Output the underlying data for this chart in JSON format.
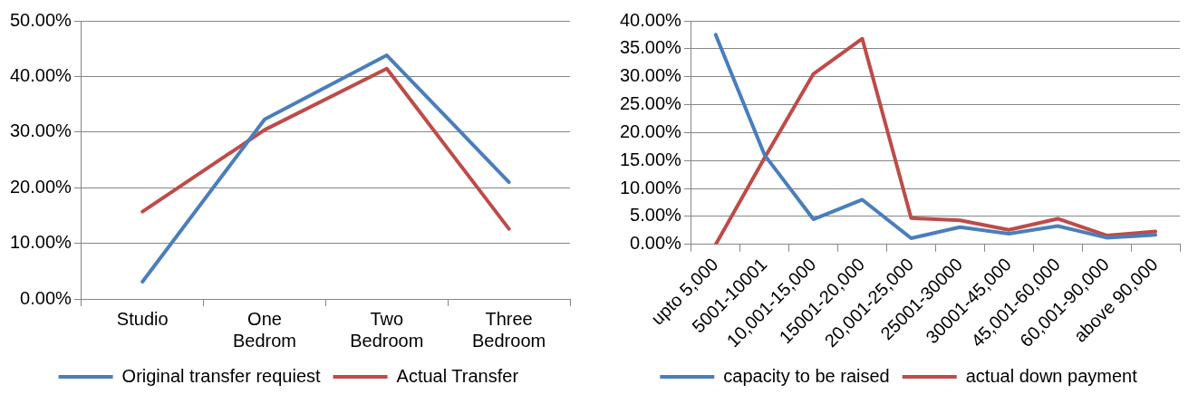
{
  "chart_data": [
    {
      "type": "line",
      "categories": [
        "Studio",
        "One Bedrom",
        "Two Bedroom",
        "Three Bedroom"
      ],
      "series": [
        {
          "name": "Original transfer requiest",
          "color": "#4a7ebb",
          "values": [
            3.1,
            32.3,
            43.8,
            21.0
          ]
        },
        {
          "name": "Actual Transfer",
          "color": "#be4b48",
          "values": [
            15.7,
            30.4,
            41.4,
            12.6
          ]
        }
      ],
      "ylim": [
        0,
        50
      ],
      "yticks": [
        {
          "value": 0,
          "label": "0.00%"
        },
        {
          "value": 10,
          "label": "10.00%"
        },
        {
          "value": 20,
          "label": "20.00%"
        },
        {
          "value": 30,
          "label": "30.00%"
        },
        {
          "value": 40,
          "label": "40.00%"
        },
        {
          "value": 50,
          "label": "50.00%"
        }
      ],
      "grid": "y",
      "legend": "bottom",
      "marker": "none",
      "line_style": "solid"
    },
    {
      "type": "line",
      "categories": [
        "upto 5,000",
        "5001-10001",
        "10,001-15,000",
        "15001-20,000",
        "20,001-25,000",
        "25001-30000",
        "30001-45,000",
        "45,001-60,000",
        "60,001-90,000",
        "above 90,000"
      ],
      "series": [
        {
          "name": "capacity to be raised",
          "color": "#4a7ebb",
          "values": [
            37.5,
            16,
            4.5,
            8.0,
            1.1,
            3.1,
            1.9,
            3.3,
            1.2,
            1.7
          ]
        },
        {
          "name": "actual down payment",
          "color": "#be4b48",
          "values": [
            0,
            15.5,
            30.5,
            36.8,
            4.7,
            4.3,
            2.6,
            4.6,
            1.6,
            2.3
          ]
        }
      ],
      "ylim": [
        0,
        40
      ],
      "yticks": [
        {
          "value": 0,
          "label": "0.00%"
        },
        {
          "value": 5,
          "label": "5.00%"
        },
        {
          "value": 10,
          "label": "10.00%"
        },
        {
          "value": 15,
          "label": "15.00%"
        },
        {
          "value": 20,
          "label": "20.00%"
        },
        {
          "value": 25,
          "label": "25.00%"
        },
        {
          "value": 30,
          "label": "30.00%"
        },
        {
          "value": 35,
          "label": "35.00%"
        },
        {
          "value": 40,
          "label": "40.00%"
        }
      ],
      "grid": "y",
      "legend": "bottom",
      "marker": "none",
      "line_style": "solid"
    }
  ]
}
